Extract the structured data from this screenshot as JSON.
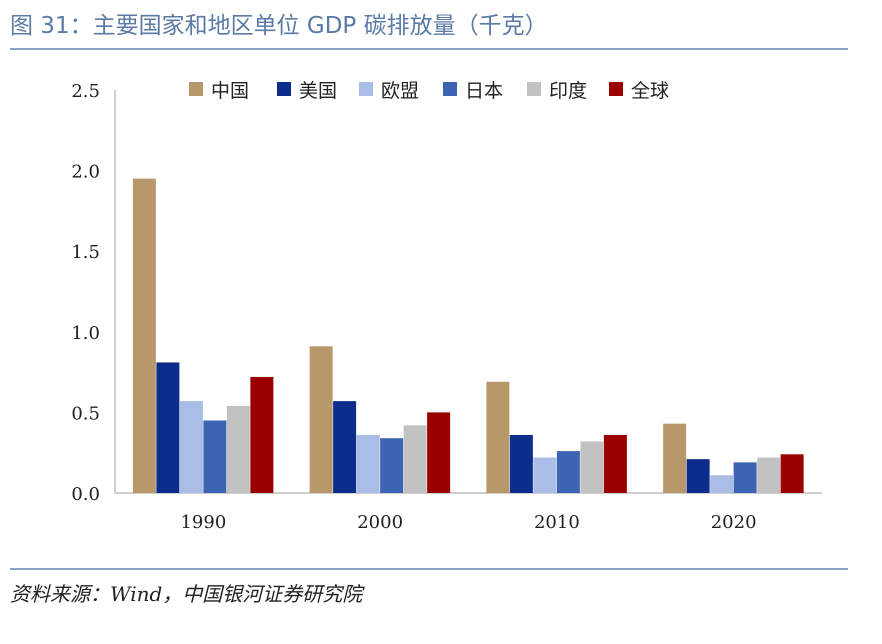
{
  "header": {
    "title": "图 31：主要国家和地区单位 GDP 碳排放量（千克）"
  },
  "footer": {
    "source": "资料来源：Wind，中国银河证券研究院"
  },
  "chart_data": {
    "type": "bar",
    "title": "主要国家和地区单位 GDP 碳排放量（千克）",
    "xlabel": "",
    "ylabel": "",
    "ylim": [
      0,
      2.5
    ],
    "yticks": [
      "0.0",
      "0.5",
      "1.0",
      "1.5",
      "2.0",
      "2.5"
    ],
    "grid": false,
    "legend_position": "top",
    "categories": [
      "1990",
      "2000",
      "2010",
      "2020"
    ],
    "series": [
      {
        "name": "中国",
        "color": "#b8986a",
        "values": [
          1.95,
          0.91,
          0.69,
          0.43
        ]
      },
      {
        "name": "美国",
        "color": "#0c2d8a",
        "values": [
          0.81,
          0.57,
          0.36,
          0.21
        ]
      },
      {
        "name": "欧盟",
        "color": "#a9bde6",
        "values": [
          0.57,
          0.36,
          0.22,
          0.11
        ]
      },
      {
        "name": "日本",
        "color": "#3d64b3",
        "values": [
          0.45,
          0.34,
          0.26,
          0.19
        ]
      },
      {
        "name": "印度",
        "color": "#c2c2c2",
        "values": [
          0.54,
          0.42,
          0.32,
          0.22
        ]
      },
      {
        "name": "全球",
        "color": "#9b0000",
        "values": [
          0.72,
          0.5,
          0.36,
          0.24
        ]
      }
    ]
  }
}
